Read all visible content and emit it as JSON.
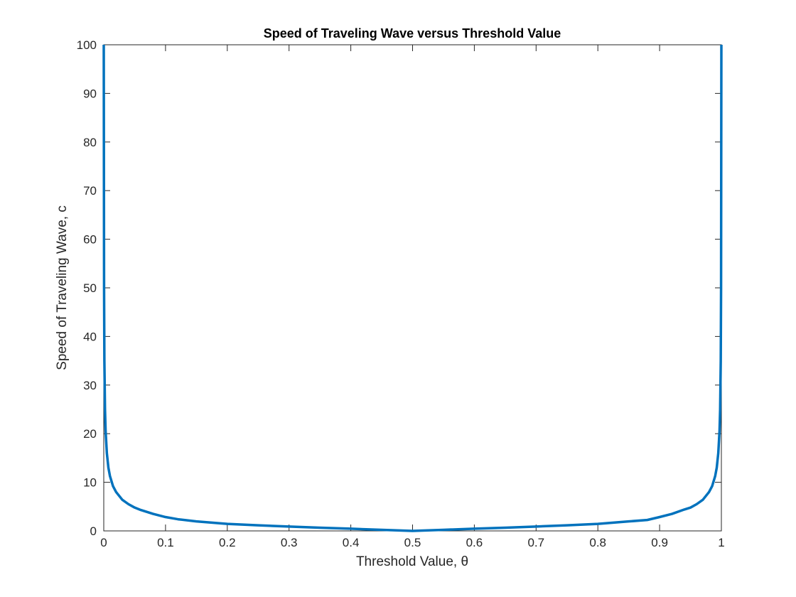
{
  "chart_data": {
    "type": "line",
    "title": "Speed of Traveling Wave versus Threshold Value",
    "xlabel": "Threshold Value, θ",
    "ylabel": "Speed of Traveling Wave, c",
    "xlim": [
      0,
      1
    ],
    "ylim": [
      0,
      100
    ],
    "xticks": [
      0,
      0.1,
      0.2,
      0.3,
      0.4,
      0.5,
      0.6,
      0.7,
      0.8,
      0.9,
      1
    ],
    "xtick_labels": [
      "0",
      "0.1",
      "0.2",
      "0.3",
      "0.4",
      "0.5",
      "0.6",
      "0.7",
      "0.8",
      "0.9",
      "1"
    ],
    "yticks": [
      0,
      10,
      20,
      30,
      40,
      50,
      60,
      70,
      80,
      90,
      100
    ],
    "ytick_labels": [
      "0",
      "10",
      "20",
      "30",
      "40",
      "50",
      "60",
      "70",
      "80",
      "90",
      "100"
    ],
    "grid": false,
    "series": [
      {
        "color": "#0072BD",
        "x": [
          0,
          0.0005,
          0.001,
          0.002,
          0.003,
          0.005,
          0.0075,
          0.01,
          0.015,
          0.02,
          0.03,
          0.04,
          0.05,
          0.06,
          0.08,
          0.1,
          0.12,
          0.15,
          0.2,
          0.25,
          0.3,
          0.35,
          0.4,
          0.45,
          0.5,
          0.55,
          0.6,
          0.65,
          0.7,
          0.75,
          0.8,
          0.85,
          0.88,
          0.9,
          0.92,
          0.94,
          0.95,
          0.96,
          0.97,
          0.98,
          0.985,
          0.99,
          0.9925,
          0.995,
          0.997,
          0.998,
          0.999,
          0.9995,
          1
        ],
        "y": [
          100,
          50,
          35,
          25,
          20.5,
          16,
          13,
          11.3,
          9.2,
          8,
          6.4,
          5.5,
          4.8,
          4.3,
          3.5,
          2.85,
          2.4,
          1.95,
          1.45,
          1.15,
          0.9,
          0.65,
          0.45,
          0.22,
          0,
          0.22,
          0.45,
          0.65,
          0.9,
          1.15,
          1.45,
          1.95,
          2.25,
          2.85,
          3.5,
          4.4,
          4.8,
          5.5,
          6.4,
          8,
          9.2,
          11.3,
          13,
          16,
          20.5,
          25,
          35,
          50,
          100
        ]
      }
    ]
  }
}
